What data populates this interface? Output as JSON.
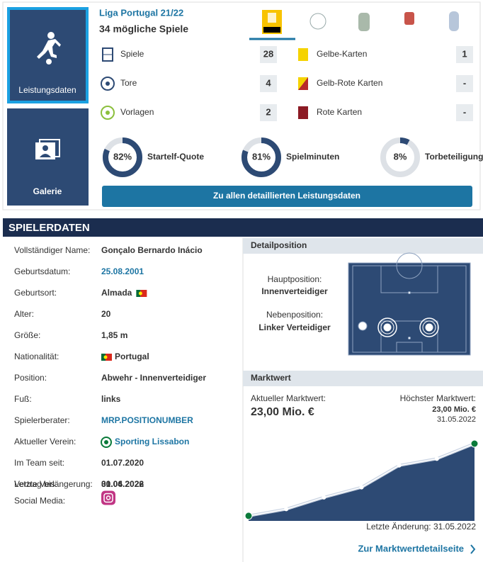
{
  "performance": {
    "title": "Liga Portugal 21/22",
    "subtitle": "34 mögliche Spiele",
    "tabs": [
      "Leistungsdaten",
      "Galerie"
    ],
    "stats": [
      {
        "label": "Spiele",
        "value": 28
      },
      {
        "label": "Tore",
        "value": 4
      },
      {
        "label": "Vorlagen",
        "value": 2
      }
    ],
    "cards": [
      {
        "label": "Gelbe-Karten",
        "value": 1
      },
      {
        "label": "Gelb-Rote Karten",
        "value": "-"
      },
      {
        "label": "Rote Karten",
        "value": "-"
      }
    ],
    "quotas": {
      "labels": [
        "Startelf-Quote",
        "Spielminuten",
        "Torbeteiligungen"
      ],
      "values": [
        82,
        81,
        8
      ],
      "value_labels": [
        "82%",
        "81%",
        "8%"
      ]
    },
    "button": "Zu allen detaillierten Leistungsdaten"
  },
  "player_data": {
    "title": "SPIELERDATEN",
    "rows": [
      {
        "label": "Vollständiger Name:",
        "value": "Gonçalo Bernardo Inácio"
      },
      {
        "label": "Geburtsdatum:",
        "value": "25.08.2001"
      },
      {
        "label": "Geburtsort:",
        "value": "Almada"
      },
      {
        "label": "Alter:",
        "value": "20"
      },
      {
        "label": "Größe:",
        "value": "1,85 m"
      },
      {
        "label": "Nationalität:",
        "value": "Portugal"
      },
      {
        "label": "Position:",
        "value": "Abwehr - Innenverteidiger"
      },
      {
        "label": "Fuß:",
        "value": "links"
      },
      {
        "label": "Spielerberater:",
        "value": "MRP.POSITIONUMBER"
      },
      {
        "label": "Aktueller Verein:",
        "value": "Sporting Lissabon"
      },
      {
        "label": "Im Team seit:",
        "value": "01.07.2020"
      },
      {
        "label": "Vertrag bis:",
        "value": "30.06.2026"
      },
      {
        "label": "Letzte Verlängerung:",
        "value": "01.04.2022"
      },
      {
        "label": "Social Media:"
      }
    ]
  },
  "position": {
    "title": "Detailposition",
    "main_label": "Hauptposition:",
    "main": "Innenverteidiger",
    "secondary_label": "Nebenposition:",
    "secondary": "Linker Verteidiger"
  },
  "market_value": {
    "title": "Marktwert",
    "current_label": "Aktueller Marktwert:",
    "current": "23,00 Mio. €",
    "highest_label": "Höchster Marktwert:",
    "highest": "23,00 Mio. €",
    "highest_date": "31.05.2022",
    "last_change": "Letzte Änderung: 31.05.2022",
    "link": "Zur Marktwertdetailseite",
    "chart": {
      "type": "line",
      "categories": [
        null,
        null,
        null,
        null,
        null,
        null,
        null
      ],
      "values": [
        1.5,
        3.5,
        7,
        10,
        16.5,
        18.5,
        23
      ]
    }
  }
}
